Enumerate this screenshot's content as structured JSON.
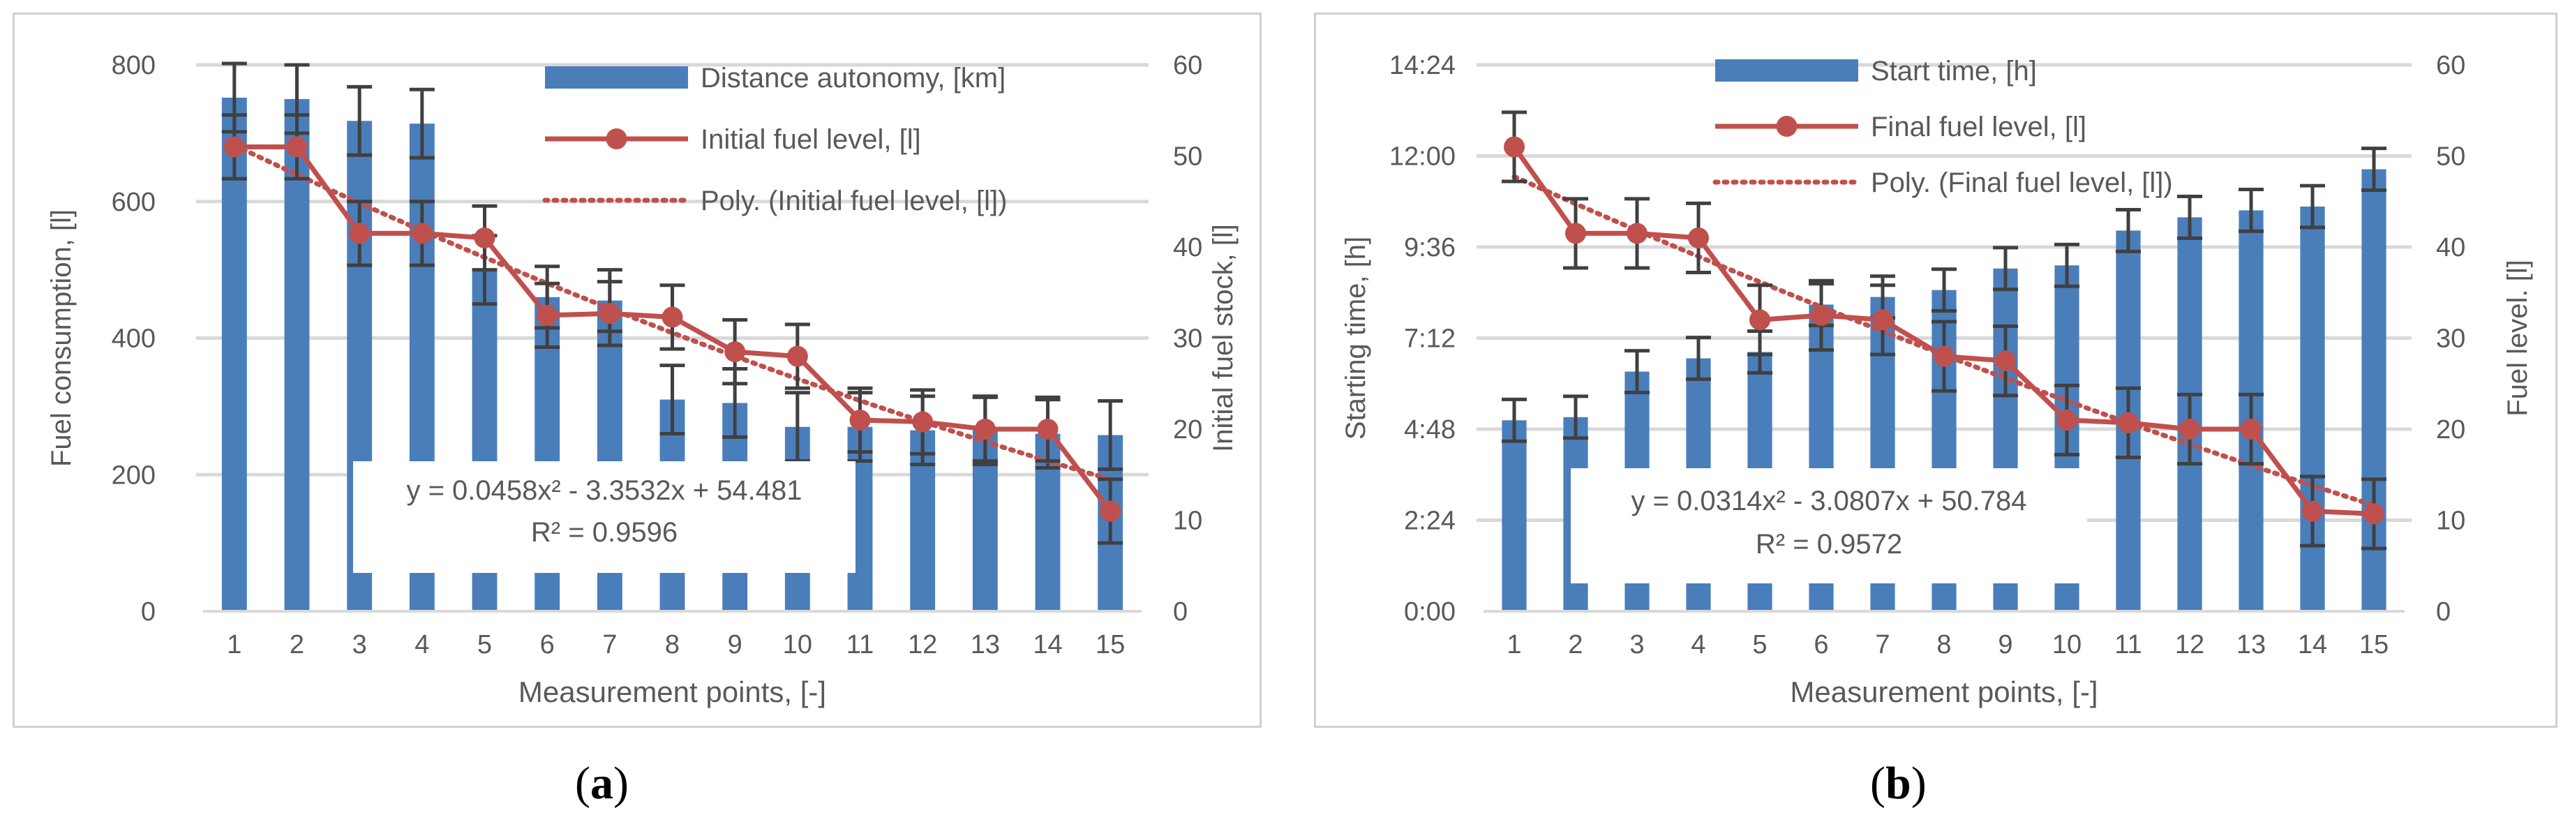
{
  "captions": {
    "a_open": "(",
    "a_letter": "a",
    "a_close": ")",
    "b_open": "(",
    "b_letter": "b",
    "b_close": ")"
  },
  "colors": {
    "bar": "#4a7ebb",
    "line": "#c0504d",
    "error": "#404040",
    "grid": "#d9d9d9",
    "text": "#595959"
  },
  "chart_data": [
    {
      "id": "a",
      "type": "bar+line",
      "xlabel": "Measurement points, [-]",
      "ylabel": "Fuel consumption, [l]",
      "ylabel_right": "Initial fuel stock, [l]",
      "categories": [
        "1",
        "2",
        "3",
        "4",
        "5",
        "6",
        "7",
        "8",
        "9",
        "10",
        "11",
        "12",
        "13",
        "14",
        "15"
      ],
      "ylim": [
        0,
        800
      ],
      "yticks": [
        0,
        200,
        400,
        600,
        800
      ],
      "ytick_labels": [
        "0",
        "200",
        "400",
        "600",
        "800"
      ],
      "ylim_right": [
        0,
        60
      ],
      "yticks_right": [
        0,
        10,
        20,
        30,
        40,
        50,
        60
      ],
      "ytick_labels_right": [
        "0",
        "10",
        "20",
        "30",
        "40",
        "50",
        "60"
      ],
      "bars": {
        "name": "Distance autonomy, [km]",
        "values": [
          752,
          750,
          718,
          714,
          500,
          460,
          455,
          310,
          305,
          270,
          270,
          265,
          265,
          260,
          258
        ],
        "error": [
          50,
          50,
          50,
          50,
          50,
          45,
          45,
          50,
          50,
          50,
          50,
          50,
          50,
          50,
          50
        ]
      },
      "line": {
        "name": "Initial fuel level, [l]",
        "values": [
          51,
          51,
          41.5,
          41.5,
          41,
          32.5,
          32.7,
          32.3,
          28.5,
          28,
          21,
          20.8,
          20,
          20,
          11
        ],
        "error": [
          3.5,
          3.5,
          3.5,
          3.5,
          3.5,
          3.5,
          3.5,
          3.5,
          3.5,
          3.5,
          3.5,
          3.5,
          3.5,
          3.5,
          3.5
        ]
      },
      "trend": {
        "name": "Poly. (Initial fuel level, [l])",
        "a": 0.0458,
        "b": -3.3532,
        "c": 54.481
      },
      "equation": "y = 0.0458x² - 3.3532x + 54.481",
      "r2": "R² = 0.9596",
      "legend_position": "top-right"
    },
    {
      "id": "b",
      "type": "bar+line",
      "xlabel": "Measurement points, [-]",
      "ylabel": "Starting time, [h]",
      "ylabel_right": "Fuel level. [l]",
      "categories": [
        "1",
        "2",
        "3",
        "4",
        "5",
        "6",
        "7",
        "8",
        "9",
        "10",
        "11",
        "12",
        "13",
        "14",
        "15"
      ],
      "ylim": [
        0,
        864
      ],
      "yticks": [
        0,
        144,
        288,
        432,
        576,
        720,
        864
      ],
      "ytick_labels": [
        "0:00",
        "2:24",
        "4:48",
        "7:12",
        "9:36",
        "12:00",
        "14:24"
      ],
      "ylim_right": [
        0,
        60
      ],
      "yticks_right": [
        0,
        10,
        20,
        30,
        40,
        50,
        60
      ],
      "ytick_labels_right": [
        "0",
        "10",
        "20",
        "30",
        "40",
        "50",
        "60"
      ],
      "bars": {
        "name": "Start time, [h]",
        "values": [
          302,
          307,
          379,
          400,
          410,
          485,
          497,
          508,
          542,
          547,
          602,
          623,
          634,
          640,
          699
        ],
        "error": [
          33,
          33,
          33,
          33,
          33,
          33,
          33,
          33,
          33,
          33,
          33,
          33,
          33,
          33,
          33
        ]
      },
      "line": {
        "name": "Final fuel level, [l]",
        "values": [
          51,
          41.5,
          41.5,
          41,
          32,
          32.5,
          32,
          28,
          27.5,
          21,
          20.7,
          20,
          20,
          11,
          10.7
        ],
        "error": [
          3.8,
          3.8,
          3.8,
          3.8,
          3.8,
          3.8,
          3.8,
          3.8,
          3.8,
          3.8,
          3.8,
          3.8,
          3.8,
          3.8,
          3.8
        ]
      },
      "trend": {
        "name": "Poly. (Final fuel level, [l])",
        "a": 0.0314,
        "b": -3.0807,
        "c": 50.784
      },
      "equation": "y = 0.0314x² - 3.0807x + 50.784",
      "r2": "R² = 0.9572",
      "legend_position": "top"
    }
  ]
}
